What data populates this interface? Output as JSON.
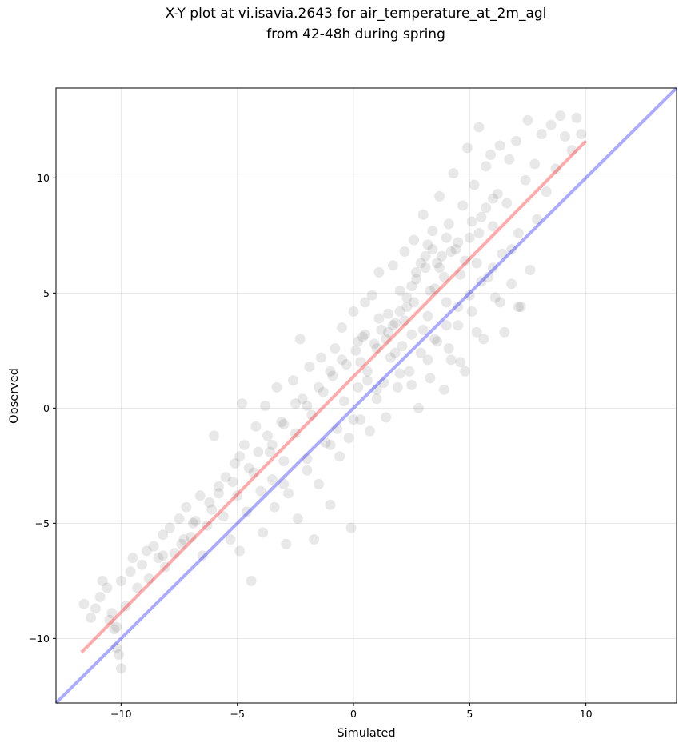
{
  "chart_data": {
    "type": "scatter",
    "title": [
      "X-Y plot at vi.isavia.2643 for air_temperature_at_2m_agl",
      "from 42-48h during spring"
    ],
    "xlabel": "Simulated",
    "ylabel": "Observed",
    "xlim": [
      -12.8,
      13.9
    ],
    "ylim": [
      -12.8,
      13.9
    ],
    "xticks": [
      -10,
      -5,
      0,
      5,
      10
    ],
    "yticks": [
      -10,
      -5,
      0,
      5,
      10
    ],
    "xtick_labels": [
      "−10",
      "−5",
      "0",
      "5",
      "10"
    ],
    "ytick_labels": [
      "−10",
      "−5",
      "0",
      "5",
      "10"
    ],
    "grid": true,
    "point_color": "#000000",
    "point_opacity": 0.09,
    "identity_line": {
      "x": [
        -12.8,
        13.9
      ],
      "y": [
        -12.8,
        13.9
      ],
      "color": "#0000ff",
      "opacity": 0.33
    },
    "fit_line": {
      "x": [
        -11.7,
        10.0
      ],
      "y": [
        -10.6,
        11.6
      ],
      "color": "#ff0000",
      "opacity": 0.33
    },
    "series": [
      {
        "points": [
          [
            -11.6,
            -8.5
          ],
          [
            -11.3,
            -9.1
          ],
          [
            -11.1,
            -8.7
          ],
          [
            -10.9,
            -8.2
          ],
          [
            -10.8,
            -7.5
          ],
          [
            -10.6,
            -7.8
          ],
          [
            -10.5,
            -9.2
          ],
          [
            -10.4,
            -8.9
          ],
          [
            -10.3,
            -9.6
          ],
          [
            -10.2,
            -9.5
          ],
          [
            -10.2,
            -10.4
          ],
          [
            -10.1,
            -10.7
          ],
          [
            -10.0,
            -11.3
          ],
          [
            -10.0,
            -7.5
          ],
          [
            -9.8,
            -8.6
          ],
          [
            -9.6,
            -7.1
          ],
          [
            -9.5,
            -6.5
          ],
          [
            -9.3,
            -7.8
          ],
          [
            -9.1,
            -6.8
          ],
          [
            -8.9,
            -6.2
          ],
          [
            -8.8,
            -7.4
          ],
          [
            -8.6,
            -6.0
          ],
          [
            -8.4,
            -6.5
          ],
          [
            -8.2,
            -5.5
          ],
          [
            -8.1,
            -6.9
          ],
          [
            -7.9,
            -5.2
          ],
          [
            -7.7,
            -6.3
          ],
          [
            -7.5,
            -4.8
          ],
          [
            -7.4,
            -5.9
          ],
          [
            -7.2,
            -4.3
          ],
          [
            -7.0,
            -5.6
          ],
          [
            -6.8,
            -4.9
          ],
          [
            -6.6,
            -3.8
          ],
          [
            -6.5,
            -6.4
          ],
          [
            -6.3,
            -5.1
          ],
          [
            -6.1,
            -4.4
          ],
          [
            -6.0,
            -1.2
          ],
          [
            -5.8,
            -3.4
          ],
          [
            -5.6,
            -4.7
          ],
          [
            -5.5,
            -3.0
          ],
          [
            -5.3,
            -5.7
          ],
          [
            -5.1,
            -2.4
          ],
          [
            -5.0,
            -3.8
          ],
          [
            -4.9,
            -6.2
          ],
          [
            -4.8,
            0.2
          ],
          [
            -4.7,
            -1.6
          ],
          [
            -4.6,
            -4.5
          ],
          [
            -4.4,
            -7.5
          ],
          [
            -4.3,
            -2.8
          ],
          [
            -4.2,
            -0.8
          ],
          [
            -4.0,
            -3.6
          ],
          [
            -3.9,
            -5.4
          ],
          [
            -3.8,
            0.1
          ],
          [
            -3.6,
            -1.9
          ],
          [
            -3.5,
            -3.1
          ],
          [
            -3.4,
            -4.3
          ],
          [
            -3.3,
            0.9
          ],
          [
            -3.1,
            -0.6
          ],
          [
            -3.0,
            -2.3
          ],
          [
            -2.9,
            -5.9
          ],
          [
            -2.8,
            -3.7
          ],
          [
            -2.6,
            1.2
          ],
          [
            -2.5,
            -1.1
          ],
          [
            -2.4,
            -4.8
          ],
          [
            -2.3,
            3.0
          ],
          [
            -2.2,
            0.4
          ],
          [
            -2.0,
            -2.7
          ],
          [
            -1.9,
            1.8
          ],
          [
            -1.8,
            -0.3
          ],
          [
            -1.7,
            -5.7
          ],
          [
            -1.5,
            -3.3
          ],
          [
            -1.4,
            2.2
          ],
          [
            -1.3,
            0.7
          ],
          [
            -1.2,
            -1.5
          ],
          [
            -1.0,
            -4.2
          ],
          [
            -0.9,
            1.4
          ],
          [
            -0.8,
            2.6
          ],
          [
            -0.7,
            -0.9
          ],
          [
            -0.6,
            -2.1
          ],
          [
            -0.5,
            3.5
          ],
          [
            -0.4,
            0.3
          ],
          [
            -0.3,
            1.9
          ],
          [
            -0.2,
            -1.3
          ],
          [
            -0.1,
            -5.2
          ],
          [
            0.0,
            4.2
          ],
          [
            0.1,
            2.5
          ],
          [
            0.2,
            0.9
          ],
          [
            0.3,
            -0.5
          ],
          [
            0.4,
            3.1
          ],
          [
            0.5,
            4.6
          ],
          [
            0.6,
            1.6
          ],
          [
            0.7,
            -1.0
          ],
          [
            0.8,
            4.9
          ],
          [
            0.9,
            2.8
          ],
          [
            1.0,
            0.4
          ],
          [
            1.1,
            5.9
          ],
          [
            1.2,
            3.4
          ],
          [
            1.3,
            1.1
          ],
          [
            1.4,
            -0.4
          ],
          [
            1.5,
            4.1
          ],
          [
            1.6,
            2.2
          ],
          [
            1.7,
            6.2
          ],
          [
            1.8,
            3.7
          ],
          [
            1.9,
            0.9
          ],
          [
            2.0,
            5.1
          ],
          [
            2.1,
            2.7
          ],
          [
            2.2,
            6.8
          ],
          [
            2.3,
            4.4
          ],
          [
            2.4,
            1.6
          ],
          [
            2.5,
            3.2
          ],
          [
            2.6,
            7.3
          ],
          [
            2.7,
            5.6
          ],
          [
            2.8,
            0.0
          ],
          [
            2.9,
            2.4
          ],
          [
            3.0,
            8.4
          ],
          [
            3.1,
            6.1
          ],
          [
            3.2,
            4.0
          ],
          [
            3.3,
            1.3
          ],
          [
            3.4,
            7.7
          ],
          [
            3.5,
            5.2
          ],
          [
            3.6,
            2.9
          ],
          [
            3.7,
            9.2
          ],
          [
            3.8,
            6.6
          ],
          [
            3.9,
            0.8
          ],
          [
            4.0,
            4.6
          ],
          [
            4.1,
            8.0
          ],
          [
            4.2,
            2.1
          ],
          [
            4.3,
            10.2
          ],
          [
            4.4,
            6.9
          ],
          [
            4.5,
            3.6
          ],
          [
            4.6,
            5.8
          ],
          [
            4.7,
            8.8
          ],
          [
            4.8,
            1.6
          ],
          [
            4.9,
            11.3
          ],
          [
            5.0,
            7.4
          ],
          [
            5.1,
            4.2
          ],
          [
            5.2,
            9.7
          ],
          [
            5.3,
            6.3
          ],
          [
            5.4,
            12.2
          ],
          [
            5.5,
            8.3
          ],
          [
            5.6,
            3.0
          ],
          [
            5.7,
            10.5
          ],
          [
            5.8,
            5.7
          ],
          [
            5.9,
            11.0
          ],
          [
            6.0,
            7.9
          ],
          [
            6.1,
            4.8
          ],
          [
            6.2,
            9.3
          ],
          [
            6.3,
            11.4
          ],
          [
            6.4,
            6.7
          ],
          [
            6.5,
            3.3
          ],
          [
            6.6,
            8.9
          ],
          [
            6.7,
            10.8
          ],
          [
            6.8,
            5.4
          ],
          [
            7.0,
            11.6
          ],
          [
            7.1,
            7.6
          ],
          [
            7.2,
            4.4
          ],
          [
            7.4,
            9.9
          ],
          [
            7.5,
            12.5
          ],
          [
            7.6,
            6.0
          ],
          [
            7.8,
            10.6
          ],
          [
            7.9,
            8.2
          ],
          [
            8.1,
            11.9
          ],
          [
            8.3,
            9.4
          ],
          [
            8.5,
            12.3
          ],
          [
            8.7,
            10.4
          ],
          [
            8.9,
            12.7
          ],
          [
            9.1,
            11.8
          ],
          [
            9.4,
            11.2
          ],
          [
            9.6,
            12.6
          ],
          [
            9.8,
            11.9
          ],
          [
            0.3,
            2.0
          ],
          [
            0.6,
            1.2
          ],
          [
            1.0,
            2.6
          ],
          [
            1.4,
            3.0
          ],
          [
            1.8,
            2.4
          ],
          [
            2.2,
            3.8
          ],
          [
            2.6,
            4.6
          ],
          [
            3.0,
            3.4
          ],
          [
            3.3,
            5.1
          ],
          [
            3.6,
            6.3
          ],
          [
            3.9,
            5.7
          ],
          [
            4.2,
            6.8
          ],
          [
            4.5,
            7.2
          ],
          [
            4.8,
            6.4
          ],
          [
            5.1,
            8.1
          ],
          [
            5.4,
            7.6
          ],
          [
            5.7,
            8.7
          ],
          [
            6.0,
            9.1
          ],
          [
            3.1,
            6.6
          ],
          [
            3.4,
            6.9
          ],
          [
            2.9,
            6.3
          ],
          [
            3.7,
            6.1
          ],
          [
            4.0,
            7.4
          ],
          [
            3.2,
            7.1
          ],
          [
            2.7,
            5.9
          ],
          [
            2.5,
            5.3
          ],
          [
            2.3,
            4.8
          ],
          [
            2.0,
            4.2
          ],
          [
            1.7,
            3.6
          ],
          [
            1.5,
            3.3
          ],
          [
            -2.0,
            0.1
          ],
          [
            -1.5,
            0.9
          ],
          [
            -1.0,
            1.6
          ],
          [
            -0.5,
            2.1
          ],
          [
            0.2,
            2.9
          ],
          [
            0.5,
            3.2
          ],
          [
            1.1,
            3.9
          ],
          [
            -3.5,
            -1.6
          ],
          [
            -3.0,
            -0.7
          ],
          [
            -2.5,
            0.2
          ],
          [
            -4.5,
            -2.6
          ],
          [
            -4.1,
            -1.9
          ],
          [
            -3.7,
            -1.2
          ],
          [
            -5.2,
            -3.2
          ],
          [
            -4.9,
            -2.1
          ],
          [
            -6.2,
            -4.1
          ],
          [
            -5.8,
            -3.7
          ],
          [
            -7.3,
            -5.7
          ],
          [
            -6.9,
            -5.0
          ],
          [
            -8.2,
            -6.4
          ],
          [
            3.5,
            3.0
          ],
          [
            4.0,
            3.6
          ],
          [
            4.5,
            4.4
          ],
          [
            5.0,
            4.9
          ],
          [
            5.5,
            5.5
          ],
          [
            6.0,
            6.1
          ],
          [
            2.0,
            1.5
          ],
          [
            1.0,
            0.8
          ],
          [
            0.0,
            -0.5
          ],
          [
            -1.0,
            -1.6
          ],
          [
            -2.0,
            -2.2
          ],
          [
            -3.0,
            -3.3
          ],
          [
            2.5,
            1.0
          ],
          [
            3.2,
            2.1
          ],
          [
            4.1,
            2.6
          ],
          [
            4.6,
            2.0
          ],
          [
            5.3,
            3.3
          ],
          [
            6.3,
            4.6
          ],
          [
            7.1,
            4.4
          ],
          [
            6.8,
            6.9
          ]
        ]
      }
    ]
  }
}
